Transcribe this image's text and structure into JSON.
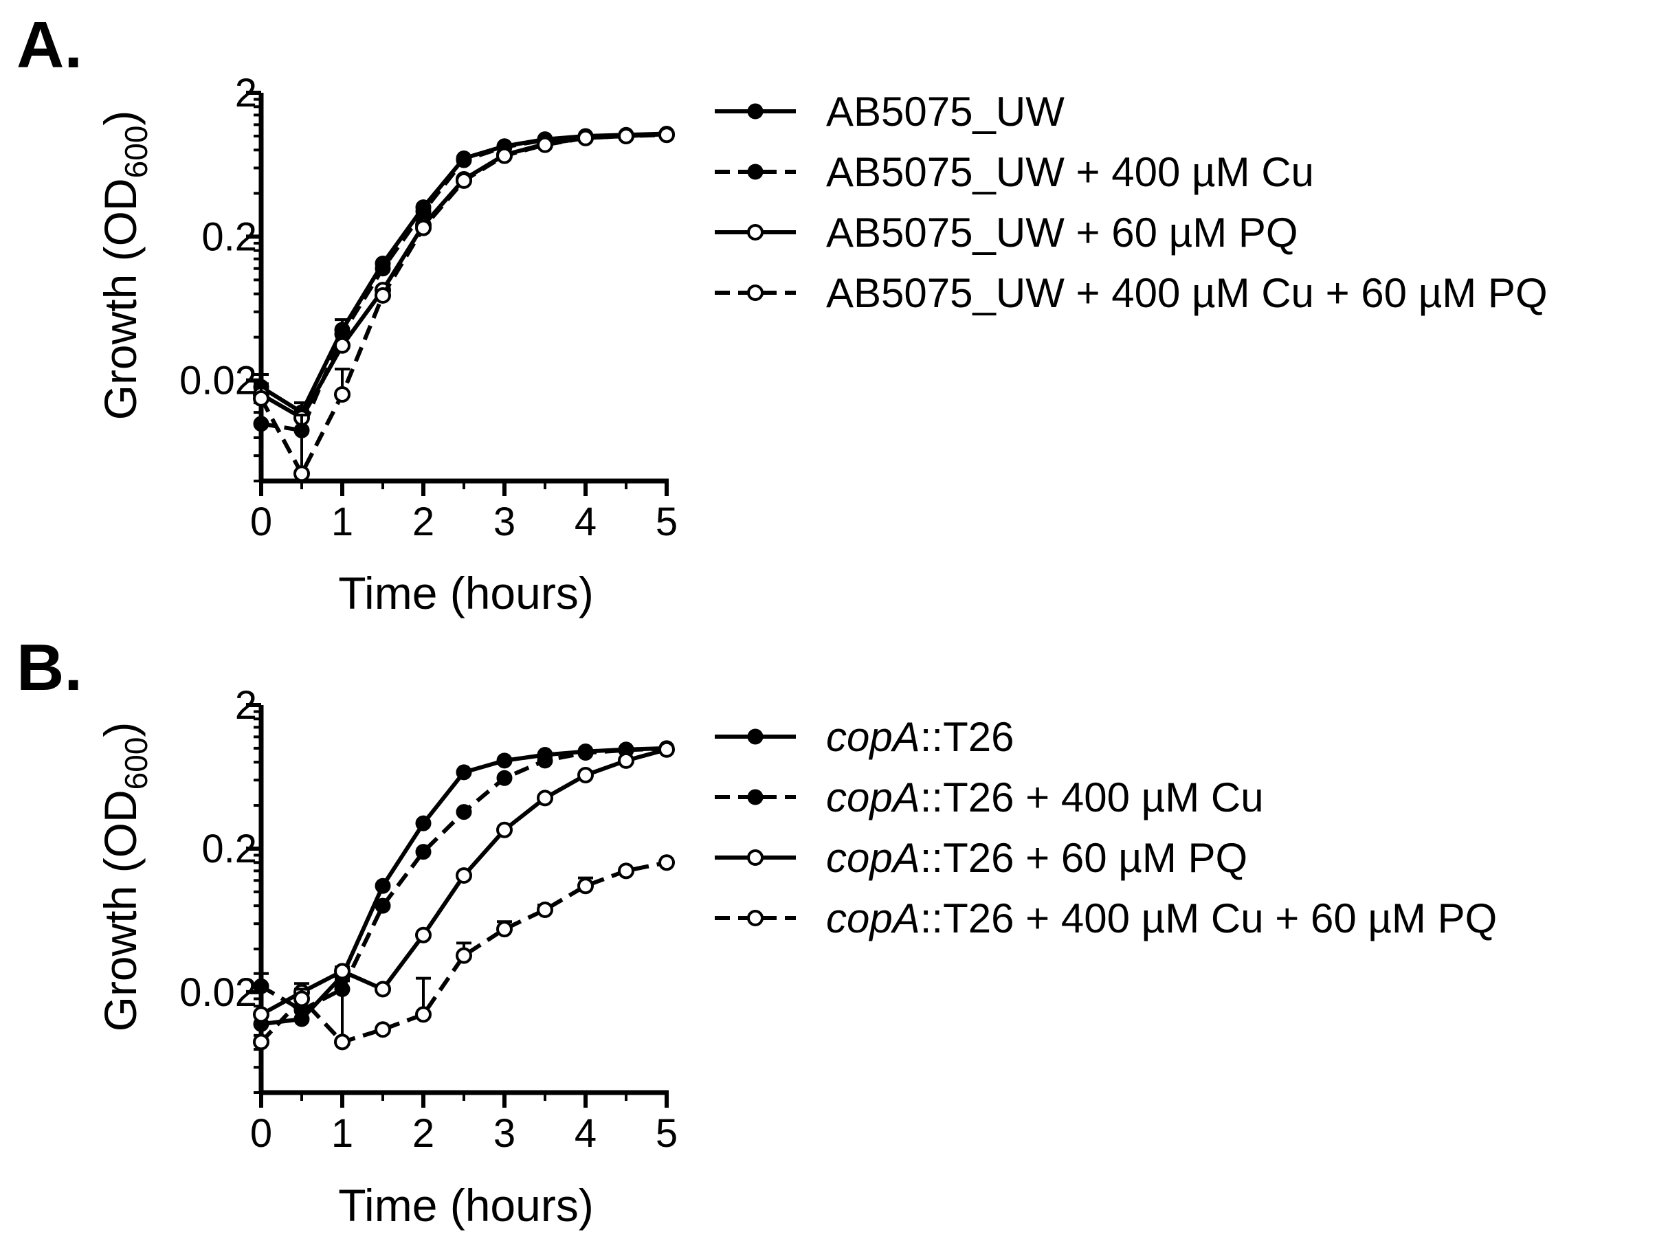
{
  "chart_data": [
    {
      "panel": "A.",
      "type": "line",
      "xlabel": "Time (hours)",
      "ylabel": "Growth (OD",
      "ylabel_subscript": "600",
      "ylabel_suffix": ")",
      "y_scale": "log",
      "xlim": [
        0,
        5
      ],
      "ylim": [
        0.004,
        2
      ],
      "x_ticks": [
        "0",
        "1",
        "2",
        "3",
        "4",
        "5"
      ],
      "y_ticks": [
        {
          "value": 0.02,
          "label": "0.02"
        },
        {
          "value": 0.2,
          "label": "0.2"
        },
        {
          "value": 2,
          "label": "2"
        }
      ],
      "grid": false,
      "legend_position": "right",
      "x": [
        0,
        0.5,
        1,
        1.5,
        2,
        2.5,
        3,
        3.5,
        4,
        4.5,
        5
      ],
      "series": [
        {
          "legend_parts": [
            {
              "text": "AB5075_UW",
              "italic": false
            }
          ],
          "line": "solid",
          "marker": "filled",
          "values": [
            0.018,
            0.012,
            0.045,
            0.13,
            0.32,
            0.7,
            0.85,
            0.95,
            1.0,
            1.02,
            1.04
          ],
          "error_plus": [
            0.004,
            0.002,
            0.008,
            0,
            0,
            0,
            0,
            0,
            0,
            0,
            0
          ]
        },
        {
          "legend_parts": [
            {
              "text": "AB5075_UW + 400 µM Cu",
              "italic": false
            }
          ],
          "line": "dashed",
          "marker": "filled",
          "values": [
            0.01,
            0.009,
            0.042,
            0.12,
            0.3,
            0.68,
            0.84,
            0.94,
            0.99,
            1.01,
            1.03
          ],
          "error_plus": [
            0,
            0.003,
            0,
            0,
            0,
            0,
            0,
            0,
            0,
            0,
            0
          ]
        },
        {
          "legend_parts": [
            {
              "text": "AB5075_UW + 60 µM PQ",
              "italic": false
            }
          ],
          "line": "solid",
          "marker": "open",
          "values": [
            0.016,
            0.011,
            0.035,
            0.085,
            0.24,
            0.5,
            0.74,
            0.88,
            0.97,
            1.0,
            1.03
          ],
          "error_plus": [
            0,
            0,
            0,
            0,
            0,
            0,
            0,
            0,
            0,
            0,
            0
          ]
        },
        {
          "legend_parts": [
            {
              "text": "AB5075_UW + 400 µM Cu + 60 µM PQ",
              "italic": false
            }
          ],
          "line": "dashed",
          "marker": "open",
          "values": [
            0.015,
            0.0045,
            0.016,
            0.078,
            0.23,
            0.49,
            0.73,
            0.87,
            0.97,
            1.0,
            1.02
          ],
          "error_plus": [
            0.004,
            0.007,
            0.008,
            0,
            0,
            0,
            0,
            0,
            0,
            0,
            0
          ]
        }
      ]
    },
    {
      "panel": "B.",
      "type": "line",
      "xlabel": "Time (hours)",
      "ylabel": "Growth (OD",
      "ylabel_subscript": "600",
      "ylabel_suffix": ")",
      "y_scale": "log",
      "xlim": [
        0,
        5
      ],
      "ylim": [
        0.004,
        2
      ],
      "x_ticks": [
        "0",
        "1",
        "2",
        "3",
        "4",
        "5"
      ],
      "y_ticks": [
        {
          "value": 0.02,
          "label": "0.02"
        },
        {
          "value": 0.2,
          "label": "0.2"
        },
        {
          "value": 2,
          "label": "2"
        }
      ],
      "grid": false,
      "legend_position": "right",
      "x": [
        0,
        0.5,
        1,
        1.5,
        2,
        2.5,
        3,
        3.5,
        4,
        4.5,
        5
      ],
      "series": [
        {
          "legend_parts": [
            {
              "text": "copA",
              "italic": true
            },
            {
              "text": "::T26",
              "italic": false
            }
          ],
          "line": "solid",
          "marker": "filled",
          "values": [
            0.012,
            0.013,
            0.026,
            0.11,
            0.3,
            0.68,
            0.82,
            0.9,
            0.95,
            0.98,
            1.0
          ],
          "error_plus": [
            0,
            0,
            0.004,
            0,
            0,
            0,
            0,
            0,
            0,
            0,
            0
          ]
        },
        {
          "legend_parts": [
            {
              "text": "copA",
              "italic": true
            },
            {
              "text": "::T26 + 400 µM Cu",
              "italic": false
            }
          ],
          "line": "dashed",
          "marker": "filled",
          "values": [
            0.022,
            0.015,
            0.021,
            0.08,
            0.19,
            0.36,
            0.62,
            0.82,
            0.93,
            0.97,
            1.0
          ],
          "error_plus": [
            0.005,
            0,
            0.003,
            0,
            0,
            0,
            0,
            0,
            0,
            0,
            0
          ]
        },
        {
          "legend_parts": [
            {
              "text": "copA",
              "italic": true
            },
            {
              "text": "::T26 + 60 µM PQ",
              "italic": false
            }
          ],
          "line": "solid",
          "marker": "open",
          "values": [
            0.014,
            0.02,
            0.028,
            0.021,
            0.05,
            0.13,
            0.27,
            0.45,
            0.65,
            0.82,
            0.98
          ],
          "error_plus": [
            0,
            0.003,
            0,
            0,
            0,
            0,
            0,
            0,
            0,
            0,
            0
          ]
        },
        {
          "legend_parts": [
            {
              "text": "copA",
              "italic": true
            },
            {
              "text": "::T26 + 400 µM Cu + 60 µM PQ",
              "italic": false
            }
          ],
          "line": "dashed",
          "marker": "open",
          "values": [
            0.009,
            0.018,
            0.009,
            0.011,
            0.014,
            0.036,
            0.055,
            0.075,
            0.11,
            0.14,
            0.16
          ],
          "error_plus": [
            0.003,
            0.003,
            0.016,
            0,
            0.011,
            0.008,
            0.007,
            0.006,
            0.015,
            0,
            0
          ]
        }
      ]
    }
  ]
}
